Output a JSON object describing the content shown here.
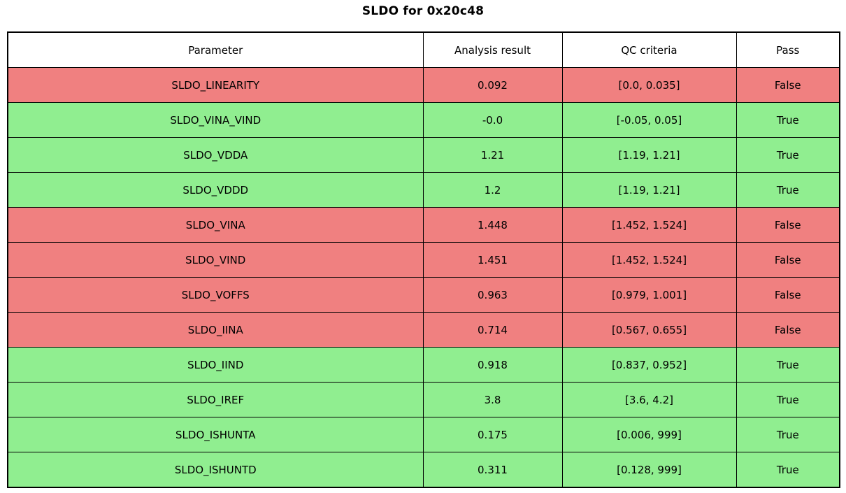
{
  "title": "SLDO for 0x20c48",
  "colors": {
    "pass_row": "#90EE90",
    "fail_row": "#F08080",
    "header_row": "#FFFFFF",
    "grid_line": "#000000"
  },
  "chart_data": {
    "type": "table",
    "title": "SLDO for 0x20c48",
    "columns": [
      "Parameter",
      "Analysis result",
      "QC criteria",
      "Pass"
    ],
    "rows": [
      {
        "parameter": "SLDO_LINEARITY",
        "result": "0.092",
        "criteria": "[0.0, 0.035]",
        "pass": "False"
      },
      {
        "parameter": "SLDO_VINA_VIND",
        "result": "-0.0",
        "criteria": "[-0.05, 0.05]",
        "pass": "True"
      },
      {
        "parameter": "SLDO_VDDA",
        "result": "1.21",
        "criteria": "[1.19, 1.21]",
        "pass": "True"
      },
      {
        "parameter": "SLDO_VDDD",
        "result": "1.2",
        "criteria": "[1.19, 1.21]",
        "pass": "True"
      },
      {
        "parameter": "SLDO_VINA",
        "result": "1.448",
        "criteria": "[1.452, 1.524]",
        "pass": "False"
      },
      {
        "parameter": "SLDO_VIND",
        "result": "1.451",
        "criteria": "[1.452, 1.524]",
        "pass": "False"
      },
      {
        "parameter": "SLDO_VOFFS",
        "result": "0.963",
        "criteria": "[0.979, 1.001]",
        "pass": "False"
      },
      {
        "parameter": "SLDO_IINA",
        "result": "0.714",
        "criteria": "[0.567, 0.655]",
        "pass": "False"
      },
      {
        "parameter": "SLDO_IIND",
        "result": "0.918",
        "criteria": "[0.837, 0.952]",
        "pass": "True"
      },
      {
        "parameter": "SLDO_IREF",
        "result": "3.8",
        "criteria": "[3.6, 4.2]",
        "pass": "True"
      },
      {
        "parameter": "SLDO_ISHUNTA",
        "result": "0.175",
        "criteria": "[0.006, 999]",
        "pass": "True"
      },
      {
        "parameter": "SLDO_ISHUNTD",
        "result": "0.311",
        "criteria": "[0.128, 999]",
        "pass": "True"
      }
    ]
  }
}
